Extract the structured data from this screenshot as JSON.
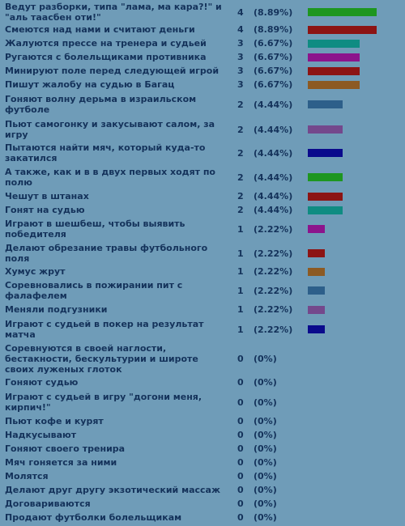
{
  "poll": {
    "options": [
      {
        "label": "Ведут разборки, типа \"лама, ма кара?!\" и \"аль тааcбен оти!\"",
        "votes": 4,
        "percent": "(8.89%)",
        "color": "#1e9620"
      },
      {
        "label": "Смеются над нами и считают деньги",
        "votes": 4,
        "percent": "(8.89%)",
        "color": "#8c1414"
      },
      {
        "label": "Жалуются прессе на тренера и судьей",
        "votes": 3,
        "percent": "(6.67%)",
        "color": "#0f8c82"
      },
      {
        "label": "Ругаются с болельщиками противника",
        "votes": 3,
        "percent": "(6.67%)",
        "color": "#8c148c"
      },
      {
        "label": "Минируют поле перед следующей игрой",
        "votes": 3,
        "percent": "(6.67%)",
        "color": "#8c1414"
      },
      {
        "label": "Пишут жалобу на судью в Багац",
        "votes": 3,
        "percent": "(6.67%)",
        "color": "#8c5a23"
      },
      {
        "label": "Гоняют волну дерьма в израильском футболе",
        "votes": 2,
        "percent": "(4.44%)",
        "color": "#2d5f8a"
      },
      {
        "label": "Пьют самогонку и закусывают салом, за игру",
        "votes": 2,
        "percent": "(4.44%)",
        "color": "#74488c"
      },
      {
        "label": "Пытаются найти мяч, который куда-то закатился",
        "votes": 2,
        "percent": "(4.44%)",
        "color": "#0a0a8c"
      },
      {
        "label": "А также, как и в в двух первых ходят по полю",
        "votes": 2,
        "percent": "(4.44%)",
        "color": "#1e9620"
      },
      {
        "label": "Чешут в штанах",
        "votes": 2,
        "percent": "(4.44%)",
        "color": "#8c1414"
      },
      {
        "label": "Гонят на судью",
        "votes": 2,
        "percent": "(4.44%)",
        "color": "#0f8c82"
      },
      {
        "label": "Играют в шешбеш, чтобы выявить победителя",
        "votes": 1,
        "percent": "(2.22%)",
        "color": "#8c148c"
      },
      {
        "label": "Делают обрезание травы футбольного поля",
        "votes": 1,
        "percent": "(2.22%)",
        "color": "#8c1414"
      },
      {
        "label": "Хумус жрут",
        "votes": 1,
        "percent": "(2.22%)",
        "color": "#8c5a23"
      },
      {
        "label": "Соревновались в пожирании пит с фалафелем",
        "votes": 1,
        "percent": "(2.22%)",
        "color": "#2d5f8a"
      },
      {
        "label": "Меняли подгузники",
        "votes": 1,
        "percent": "(2.22%)",
        "color": "#74488c"
      },
      {
        "label": "Играют с судьей в покер на результат матча",
        "votes": 1,
        "percent": "(2.22%)",
        "color": "#0a0a8c"
      },
      {
        "label": "Соревнуются в своей наглости, бестакности, бескультурии и широте своих луженых глоток",
        "votes": 0,
        "percent": "(0%)",
        "color": "#1e9620"
      },
      {
        "label": "Гоняют судью",
        "votes": 0,
        "percent": "(0%)",
        "color": "#8c1414"
      },
      {
        "label": "Играют с судьей в игру \"догони меня, кирпич!\"",
        "votes": 0,
        "percent": "(0%)",
        "color": "#0f8c82"
      },
      {
        "label": "Пьют кофе и курят",
        "votes": 0,
        "percent": "(0%)",
        "color": "#8c148c"
      },
      {
        "label": "Надкусывают",
        "votes": 0,
        "percent": "(0%)",
        "color": "#8c1414"
      },
      {
        "label": "Гоняют своего тренира",
        "votes": 0,
        "percent": "(0%)",
        "color": "#8c5a23"
      },
      {
        "label": "Мяч гоняется за ними",
        "votes": 0,
        "percent": "(0%)",
        "color": "#2d5f8a"
      },
      {
        "label": "Молятся",
        "votes": 0,
        "percent": "(0%)",
        "color": "#74488c"
      },
      {
        "label": "Делают друг другу экзотический массаж",
        "votes": 0,
        "percent": "(0%)",
        "color": "#0a0a8c"
      },
      {
        "label": "Договариваются",
        "votes": 0,
        "percent": "(0%)",
        "color": "#1e9620"
      },
      {
        "label": "Продают футболки болельщикам",
        "votes": 0,
        "percent": "(0%)",
        "color": "#8c1414"
      }
    ]
  }
}
